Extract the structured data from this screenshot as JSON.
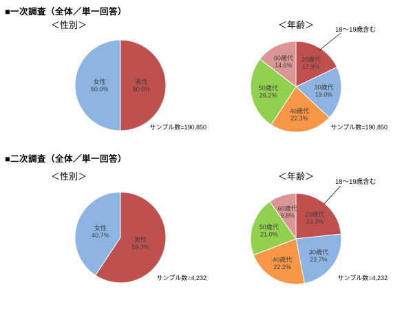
{
  "page": {
    "sections": [
      {
        "title": "■一次調査（全体／単一回答）"
      },
      {
        "title": "■二次調査（全体／単一回答）"
      }
    ]
  },
  "chart_data": [
    {
      "id": "survey1-gender",
      "type": "pie",
      "subtitle": "＜性別＞",
      "categories": [
        "男性",
        "女性"
      ],
      "values": [
        50.0,
        50.0
      ],
      "colors": [
        "#C0504D",
        "#8DB4E2"
      ],
      "sample_note": "サンプル数=190,850",
      "start_angle": "top",
      "direction": "clockwise"
    },
    {
      "id": "survey1-age",
      "type": "pie",
      "subtitle": "＜年齢＞",
      "categories": [
        "20歳代",
        "30歳代",
        "40歳代",
        "50歳代",
        "60歳代"
      ],
      "values": [
        17.9,
        19.0,
        22.3,
        26.2,
        14.6
      ],
      "colors": [
        "#C0504D",
        "#8DB4E2",
        "#F79646",
        "#92D050",
        "#D99694"
      ],
      "annotation": "18～19歳含む",
      "sample_note": "サンプル数=190,850",
      "start_angle": "top",
      "direction": "clockwise"
    },
    {
      "id": "survey2-gender",
      "type": "pie",
      "subtitle": "＜性別＞",
      "categories": [
        "男性",
        "女性"
      ],
      "values": [
        59.3,
        40.7
      ],
      "colors": [
        "#C0504D",
        "#8DB4E2"
      ],
      "sample_note": "サンプル数=4,232",
      "start_angle": "top",
      "direction": "clockwise"
    },
    {
      "id": "survey2-age",
      "type": "pie",
      "subtitle": "＜年齢＞",
      "categories": [
        "20歳代",
        "30歳代",
        "40歳代",
        "50歳代",
        "60歳代"
      ],
      "values": [
        23.3,
        23.7,
        22.2,
        21.0,
        9.8
      ],
      "colors": [
        "#C0504D",
        "#8DB4E2",
        "#F79646",
        "#92D050",
        "#D99694"
      ],
      "annotation": "18～19歳含む",
      "sample_note": "サンプル数=4,232",
      "start_angle": "top",
      "direction": "clockwise"
    }
  ]
}
